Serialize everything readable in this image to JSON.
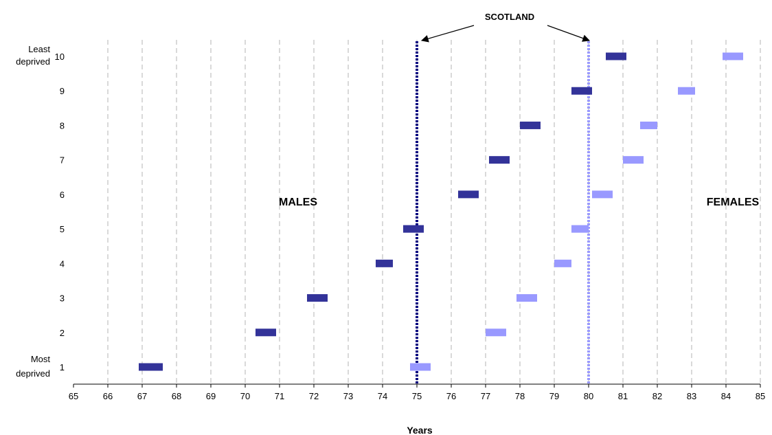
{
  "chart_data": {
    "type": "range-marker",
    "xlabel": "Years",
    "xlim": [
      65,
      85
    ],
    "x_ticks": [
      "65",
      "66",
      "67",
      "68",
      "69",
      "70",
      "71",
      "72",
      "73",
      "74",
      "75",
      "76",
      "77",
      "78",
      "79",
      "80",
      "81",
      "82",
      "83",
      "84",
      "85"
    ],
    "y_categories": [
      "1",
      "2",
      "3",
      "4",
      "5",
      "6",
      "7",
      "8",
      "9",
      "10"
    ],
    "y_top_label": [
      "Least",
      "deprived"
    ],
    "y_bottom_label": [
      "Most",
      "deprived"
    ],
    "grid": "vertical-dashed",
    "series": [
      {
        "name": "MALES",
        "color": "#333399",
        "ranges": [
          [
            66.9,
            67.6
          ],
          [
            70.3,
            70.9
          ],
          [
            71.8,
            72.4
          ],
          [
            73.8,
            74.3
          ],
          [
            74.6,
            75.2
          ],
          [
            76.2,
            76.8
          ],
          [
            77.1,
            77.7
          ],
          [
            78.0,
            78.6
          ],
          [
            79.5,
            80.1
          ],
          [
            80.5,
            81.1
          ]
        ]
      },
      {
        "name": "FEMALES",
        "color": "#9999ff",
        "ranges": [
          [
            74.8,
            75.4
          ],
          [
            77.0,
            77.6
          ],
          [
            77.9,
            78.5
          ],
          [
            79.0,
            79.5
          ],
          [
            79.5,
            80.0
          ],
          [
            80.1,
            80.7
          ],
          [
            81.0,
            81.6
          ],
          [
            81.5,
            82.0
          ],
          [
            82.6,
            83.1
          ],
          [
            83.9,
            84.5
          ]
        ]
      }
    ],
    "reference_lines": [
      {
        "x": 75.0,
        "color": "#000080"
      },
      {
        "x": 80.0,
        "color": "#9999ff"
      }
    ],
    "reference_label": "SCOTLAND"
  }
}
